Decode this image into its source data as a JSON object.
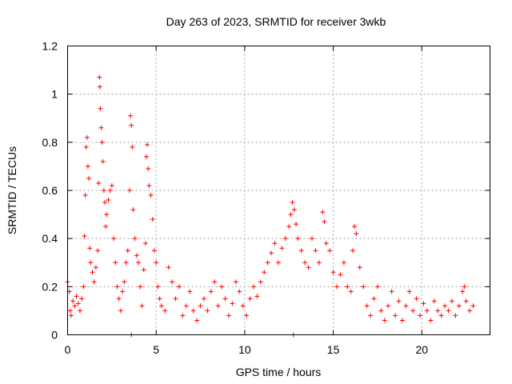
{
  "chart_data": {
    "type": "scatter",
    "title": "Day 263 of 2023, SRMTID for receiver 3wkb",
    "xlabel": "GPS time / hours",
    "ylabel": "SRMTID / TECUs",
    "xlim": [
      0,
      23.85
    ],
    "ylim": [
      0,
      1.2
    ],
    "xticks": [
      0,
      5,
      10,
      15,
      20
    ],
    "xtick_labels": [
      "0",
      "5",
      "10",
      "15",
      "20"
    ],
    "yticks": [
      0,
      0.2,
      0.4,
      0.6,
      0.8,
      1.0,
      1.2
    ],
    "ytick_labels": [
      "0",
      "0.2",
      "0.4",
      "0.6",
      "0.8",
      "1",
      "1.2"
    ],
    "grid": true,
    "marker": "+",
    "series": [
      {
        "name": "SRMTID",
        "color": "#ff0000",
        "points": [
          [
            0.0,
            0.22
          ],
          [
            0.1,
            0.18
          ],
          [
            0.15,
            0.1
          ],
          [
            0.2,
            0.08
          ],
          [
            0.3,
            0.14
          ],
          [
            0.4,
            0.12
          ],
          [
            0.5,
            0.16
          ],
          [
            0.6,
            0.13
          ],
          [
            0.7,
            0.1
          ],
          [
            0.8,
            0.15
          ],
          [
            0.9,
            0.2
          ],
          [
            0.95,
            0.41
          ],
          [
            1.0,
            0.58
          ],
          [
            1.05,
            0.78
          ],
          [
            1.1,
            0.82
          ],
          [
            1.15,
            0.7
          ],
          [
            1.2,
            0.65
          ],
          [
            1.25,
            0.36
          ],
          [
            1.3,
            0.3
          ],
          [
            1.4,
            0.26
          ],
          [
            1.5,
            0.22
          ],
          [
            1.6,
            0.28
          ],
          [
            1.7,
            0.35
          ],
          [
            1.75,
            0.63
          ],
          [
            1.8,
            1.07
          ],
          [
            1.82,
            1.03
          ],
          [
            1.85,
            0.94
          ],
          [
            1.9,
            0.86
          ],
          [
            1.95,
            0.8
          ],
          [
            2.0,
            0.72
          ],
          [
            2.05,
            0.6
          ],
          [
            2.1,
            0.55
          ],
          [
            2.15,
            0.45
          ],
          [
            2.2,
            0.5
          ],
          [
            2.3,
            0.56
          ],
          [
            2.4,
            0.6
          ],
          [
            2.5,
            0.62
          ],
          [
            2.6,
            0.4
          ],
          [
            2.7,
            0.3
          ],
          [
            2.8,
            0.2
          ],
          [
            2.9,
            0.15
          ],
          [
            3.0,
            0.1
          ],
          [
            3.1,
            0.18
          ],
          [
            3.2,
            0.22
          ],
          [
            3.3,
            0.3
          ],
          [
            3.4,
            0.35
          ],
          [
            3.5,
            0.6
          ],
          [
            3.55,
            0.91
          ],
          [
            3.6,
            0.87
          ],
          [
            3.65,
            0.78
          ],
          [
            3.7,
            0.52
          ],
          [
            3.6,
            0.0
          ],
          [
            3.8,
            0.4
          ],
          [
            3.9,
            0.33
          ],
          [
            4.0,
            0.3
          ],
          [
            4.1,
            0.2
          ],
          [
            4.2,
            0.12
          ],
          [
            4.3,
            0.27
          ],
          [
            4.4,
            0.38
          ],
          [
            4.45,
            0.74
          ],
          [
            4.5,
            0.79
          ],
          [
            4.55,
            0.69
          ],
          [
            4.6,
            0.62
          ],
          [
            4.7,
            0.58
          ],
          [
            4.8,
            0.48
          ],
          [
            4.9,
            0.35
          ],
          [
            5.0,
            0.3
          ],
          [
            5.1,
            0.2
          ],
          [
            5.2,
            0.15
          ],
          [
            5.3,
            0.12
          ],
          [
            5.5,
            0.1
          ],
          [
            5.7,
            0.28
          ],
          [
            5.9,
            0.22
          ],
          [
            6.1,
            0.15
          ],
          [
            6.3,
            0.2
          ],
          [
            6.5,
            0.08
          ],
          [
            6.7,
            0.12
          ],
          [
            6.9,
            0.18
          ],
          [
            7.1,
            0.1
          ],
          [
            7.3,
            0.06
          ],
          [
            7.5,
            0.12
          ],
          [
            7.7,
            0.15
          ],
          [
            7.9,
            0.1
          ],
          [
            8.1,
            0.18
          ],
          [
            8.3,
            0.22
          ],
          [
            8.5,
            0.12
          ],
          [
            8.7,
            0.2
          ],
          [
            8.9,
            0.15
          ],
          [
            9.1,
            0.08
          ],
          [
            9.3,
            0.13
          ],
          [
            9.5,
            0.22
          ],
          [
            9.7,
            0.18
          ],
          [
            9.9,
            0.12
          ],
          [
            10.1,
            0.08
          ],
          [
            10.3,
            0.15
          ],
          [
            10.5,
            0.2
          ],
          [
            10.7,
            0.16
          ],
          [
            10.9,
            0.22
          ],
          [
            11.1,
            0.26
          ],
          [
            11.3,
            0.3
          ],
          [
            11.5,
            0.34
          ],
          [
            11.7,
            0.38
          ],
          [
            11.9,
            0.3
          ],
          [
            12.1,
            0.36
          ],
          [
            12.3,
            0.4
          ],
          [
            12.5,
            0.45
          ],
          [
            12.6,
            0.5
          ],
          [
            12.7,
            0.55
          ],
          [
            12.8,
            0.52
          ],
          [
            12.9,
            0.46
          ],
          [
            12.75,
            0.0
          ],
          [
            13.0,
            0.4
          ],
          [
            13.2,
            0.35
          ],
          [
            13.4,
            0.3
          ],
          [
            13.6,
            0.28
          ],
          [
            13.8,
            0.4
          ],
          [
            14.0,
            0.35
          ],
          [
            14.2,
            0.3
          ],
          [
            14.4,
            0.51
          ],
          [
            14.5,
            0.47
          ],
          [
            14.6,
            0.38
          ],
          [
            14.8,
            0.35
          ],
          [
            15.0,
            0.26
          ],
          [
            15.2,
            0.2
          ],
          [
            15.4,
            0.25
          ],
          [
            15.6,
            0.3
          ],
          [
            15.8,
            0.2
          ],
          [
            16.0,
            0.18
          ],
          [
            16.1,
            0.35
          ],
          [
            16.2,
            0.45
          ],
          [
            16.3,
            0.42
          ],
          [
            16.5,
            0.28
          ],
          [
            16.7,
            0.2
          ],
          [
            16.9,
            0.12
          ],
          [
            17.1,
            0.08
          ],
          [
            17.3,
            0.15
          ],
          [
            17.5,
            0.2
          ],
          [
            17.7,
            0.1
          ],
          [
            17.9,
            0.06
          ],
          [
            18.1,
            0.12
          ],
          [
            18.3,
            0.18
          ],
          [
            18.5,
            0.08
          ],
          [
            18.7,
            0.14
          ],
          [
            18.9,
            0.06
          ],
          [
            19.1,
            0.12
          ],
          [
            19.3,
            0.18
          ],
          [
            19.5,
            0.1
          ],
          [
            19.7,
            0.15
          ],
          [
            19.9,
            0.08
          ],
          [
            20.1,
            0.13
          ],
          [
            20.3,
            0.1
          ],
          [
            20.5,
            0.06
          ],
          [
            20.7,
            0.14
          ],
          [
            20.9,
            0.1
          ],
          [
            21.1,
            0.08
          ],
          [
            21.3,
            0.12
          ],
          [
            21.5,
            0.1
          ],
          [
            21.7,
            0.14
          ],
          [
            21.9,
            0.08
          ],
          [
            22.1,
            0.12
          ],
          [
            22.3,
            0.18
          ],
          [
            22.4,
            0.2
          ],
          [
            22.5,
            0.14
          ],
          [
            22.7,
            0.1
          ],
          [
            22.9,
            0.12
          ]
        ]
      }
    ]
  }
}
